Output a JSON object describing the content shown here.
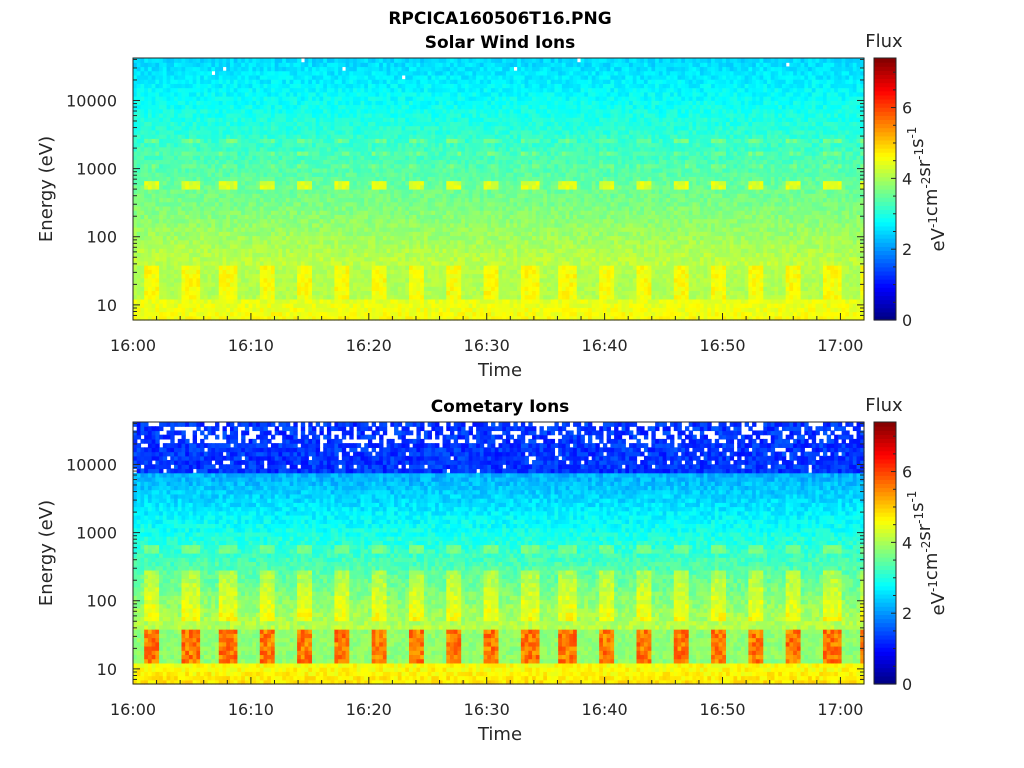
{
  "figure": {
    "suptitle": "RPCICA160506T16.PNG"
  },
  "chart_data": [
    {
      "type": "heatmap",
      "title": "Solar Wind Ions",
      "xlabel": "Time",
      "ylabel": "Energy (eV)",
      "x_ticks": [
        "16:00",
        "16:10",
        "16:20",
        "16:30",
        "16:40",
        "16:50",
        "17:00"
      ],
      "x_tick_minutes": [
        0,
        10,
        20,
        30,
        40,
        50,
        60
      ],
      "xlim_minutes": [
        0,
        62
      ],
      "yscale": "log",
      "y_ticks": [
        "10",
        "100",
        "1000",
        "10000"
      ],
      "y_tick_values": [
        10,
        100,
        1000,
        10000
      ],
      "ylim": [
        6,
        42000
      ],
      "colorbar": {
        "label": "Flux",
        "units": "eV-1cm-2sr-1s-1",
        "units_parts": [
          "eV",
          "-1",
          "cm",
          "-2",
          "sr",
          "-1",
          "s",
          "-1"
        ],
        "ticks": [
          "0",
          "2",
          "4",
          "6"
        ],
        "tick_values": [
          0,
          2,
          4,
          6
        ],
        "clim": [
          0,
          7.4
        ],
        "colormap": "jet"
      },
      "pulse_period_minutes": 3.2,
      "bands": [
        {
          "name": "low",
          "energy_eV": [
            12,
            40
          ],
          "peak_flux": 4.8
        },
        {
          "name": "mid",
          "energy_eV": [
            500,
            700
          ],
          "peak_flux": 4.6
        },
        {
          "name": "upper",
          "energy_eV": [
            900,
            2700
          ],
          "peak_flux": 3.8
        }
      ]
    },
    {
      "type": "heatmap",
      "title": "Cometary Ions",
      "xlabel": "Time",
      "ylabel": "Energy (eV)",
      "x_ticks": [
        "16:00",
        "16:10",
        "16:20",
        "16:30",
        "16:40",
        "16:50",
        "17:00"
      ],
      "x_tick_minutes": [
        0,
        10,
        20,
        30,
        40,
        50,
        60
      ],
      "xlim_minutes": [
        0,
        62
      ],
      "yscale": "log",
      "y_ticks": [
        "10",
        "100",
        "1000",
        "10000"
      ],
      "y_tick_values": [
        10,
        100,
        1000,
        10000
      ],
      "ylim": [
        6,
        42000
      ],
      "colorbar": {
        "label": "Flux",
        "units": "eV-1cm-2sr-1s-1",
        "units_parts": [
          "eV",
          "-1",
          "cm",
          "-2",
          "sr",
          "-1",
          "s",
          "-1"
        ],
        "ticks": [
          "0",
          "2",
          "4",
          "6"
        ],
        "tick_values": [
          0,
          2,
          4,
          6
        ],
        "clim": [
          0,
          7.4
        ],
        "colormap": "jet"
      },
      "pulse_period_minutes": 3.2,
      "bands": [
        {
          "name": "low",
          "energy_eV": [
            12,
            40
          ],
          "peak_flux": 6.0
        },
        {
          "name": "mid",
          "energy_eV": [
            500,
            700
          ],
          "peak_flux": 3.8
        },
        {
          "name": "high-missing",
          "energy_eV": [
            8000,
            42000
          ],
          "peak_flux": 1.0
        }
      ]
    }
  ]
}
